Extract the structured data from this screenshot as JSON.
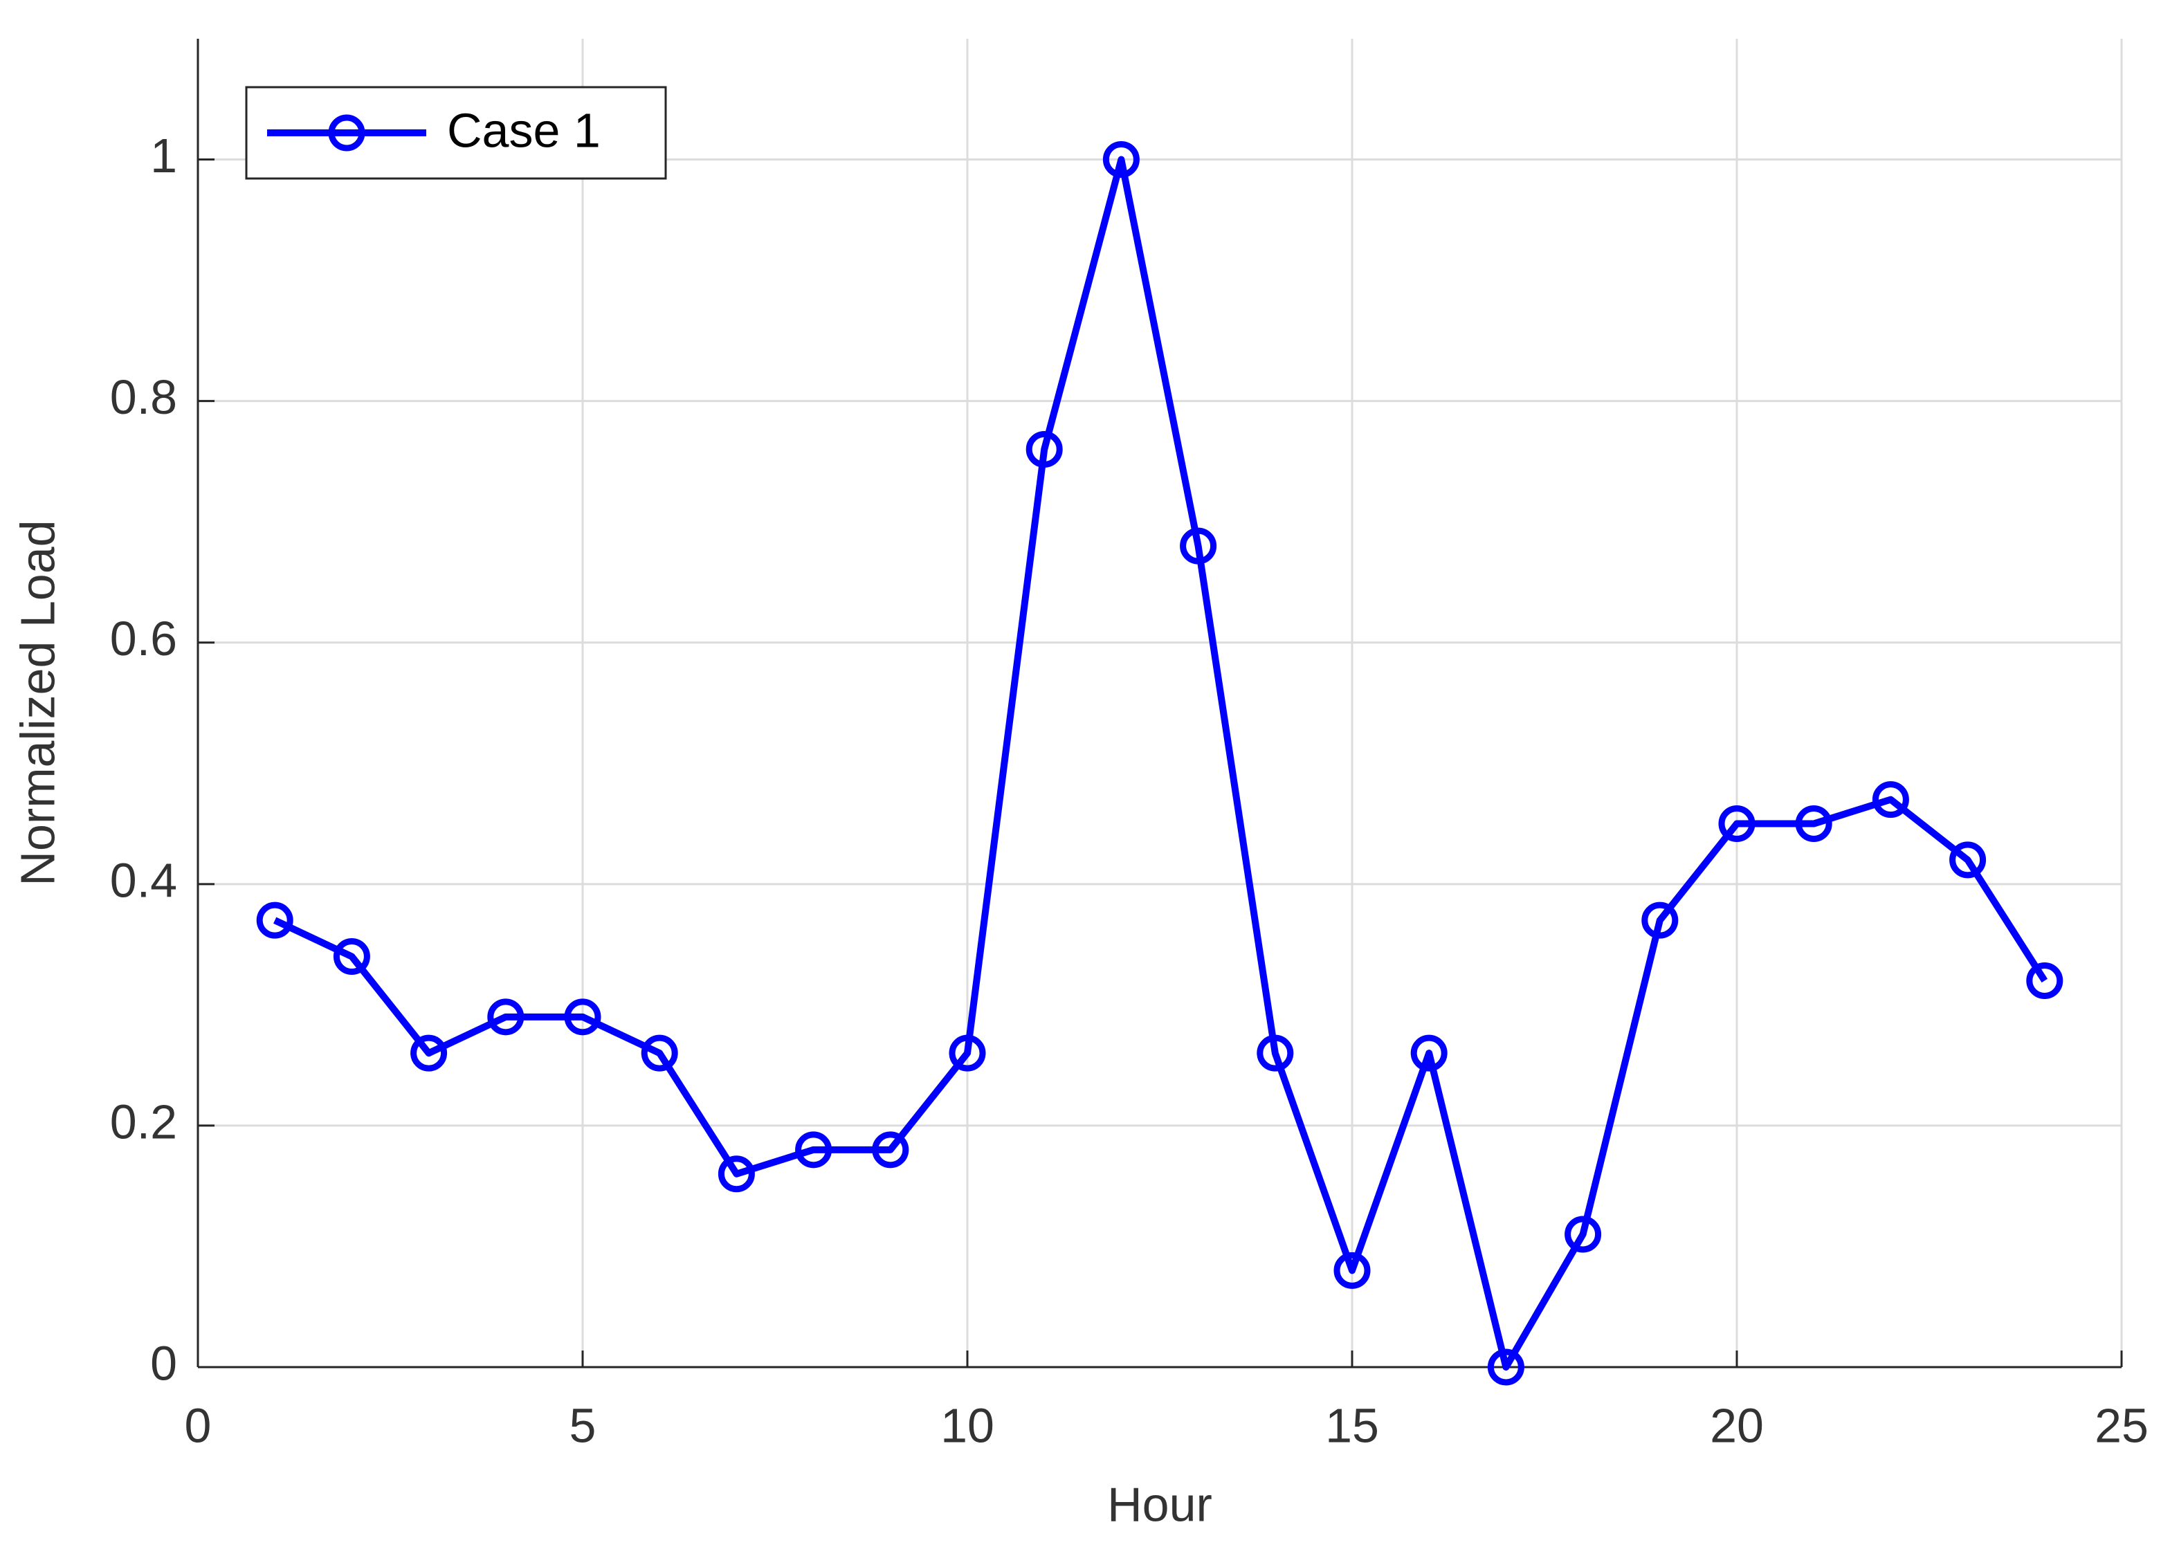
{
  "chart_data": {
    "type": "line",
    "x_label": "Hour",
    "y_label": "Normalized Load",
    "x": [
      1,
      2,
      3,
      4,
      5,
      6,
      7,
      8,
      9,
      10,
      11,
      12,
      13,
      14,
      15,
      16,
      17,
      18,
      19,
      20,
      21,
      22,
      23,
      24
    ],
    "series": [
      {
        "name": "Case 1",
        "color": "#0000ff",
        "values": [
          0.37,
          0.34,
          0.26,
          0.29,
          0.29,
          0.26,
          0.16,
          0.18,
          0.18,
          0.26,
          0.76,
          1.0,
          0.68,
          0.26,
          0.08,
          0.26,
          0.0,
          0.11,
          0.37,
          0.45,
          0.45,
          0.47,
          0.42,
          0.32
        ]
      }
    ],
    "xlim": [
      0,
      25
    ],
    "xticks": [
      0,
      5,
      10,
      15,
      20,
      25
    ],
    "ylim": [
      0,
      1.1
    ],
    "yticks": [
      0,
      0.2,
      0.4,
      0.6,
      0.8,
      1
    ],
    "grid": true,
    "legend": "top-left",
    "marker": "circle"
  }
}
